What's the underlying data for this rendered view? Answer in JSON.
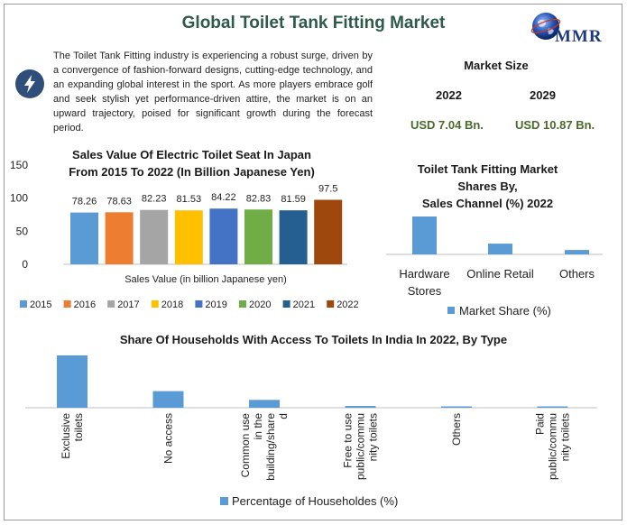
{
  "page": {
    "title": "Global Toilet Tank Fitting Market",
    "logo_text": "MMR",
    "intro": "The Toilet Tank Fitting industry is experiencing a robust surge, driven by a convergence of fashion-forward designs, cutting-edge technology, and an expanding global interest in the sport. As more players embrace golf and seek stylish yet performance-driven attire, the market is on an upward trajectory, poised for significant growth during the forecast period."
  },
  "market_size": {
    "title": "Market Size",
    "year_start": "2022",
    "year_end": "2029",
    "value_start": "USD 7.04 Bn.",
    "value_end": "USD 10.87 Bn."
  },
  "colors": {
    "title": "#2e5a4a",
    "blue": "#5b9bd5",
    "value_green": "#4a6a2a"
  },
  "chart_data": [
    {
      "type": "bar",
      "title_line1": "Sales Value Of Electric Toilet Seat In Japan",
      "title_line2": "From 2015 To 2022 (In Billion Japanese Yen)",
      "xlabel": "Sales Value (in billion Japanese yen)",
      "ylim": [
        0,
        150
      ],
      "yticks": [
        "0",
        "50",
        "100",
        "150"
      ],
      "ytick_values": [
        0,
        50,
        100,
        150
      ],
      "legend_position": "bottom",
      "series": [
        {
          "name": "2015",
          "value": 78.26,
          "label": "78.26",
          "color": "#5b9bd5"
        },
        {
          "name": "2016",
          "value": 78.63,
          "label": "78.63",
          "color": "#ed7d31"
        },
        {
          "name": "2017",
          "value": 82.23,
          "label": "82.23",
          "color": "#a5a5a5"
        },
        {
          "name": "2018",
          "value": 81.53,
          "label": "81.53",
          "color": "#ffc000"
        },
        {
          "name": "2019",
          "value": 84.22,
          "label": "84.22",
          "color": "#4472c4"
        },
        {
          "name": "2020",
          "value": 82.83,
          "label": "82.83",
          "color": "#70ad47"
        },
        {
          "name": "2021",
          "value": 81.59,
          "label": "81.59",
          "color": "#255e91"
        },
        {
          "name": "2022",
          "value": 97.5,
          "label": "97.5",
          "color": "#9e480e"
        }
      ]
    },
    {
      "type": "bar",
      "title_line1": "Toilet Tank Fitting Market",
      "title_line2": "Shares By,",
      "title_line3": "Sales Channel (%) 2022",
      "legend": "Market Share (%)",
      "legend_position": "bottom",
      "categories": [
        {
          "line1": "Hardware",
          "line2": "Stores"
        },
        {
          "line1": "Online Retail",
          "line2": ""
        },
        {
          "line1": "Others",
          "line2": ""
        }
      ],
      "values": [
        60,
        17,
        7
      ],
      "ylim": [
        0,
        70
      ]
    },
    {
      "type": "bar",
      "title": "Share Of Households With Access To Toilets In India In 2022, By Type",
      "legend": "Percentage of Householdes (%)",
      "legend_position": "bottom",
      "categories": [
        {
          "lines": [
            "Exclusive",
            "toilets"
          ]
        },
        {
          "lines": [
            "No access"
          ]
        },
        {
          "lines": [
            "Common use",
            "in the",
            "building/share",
            "d"
          ]
        },
        {
          "lines": [
            "Free to use",
            "public/commu",
            "nity toilets"
          ]
        },
        {
          "lines": [
            "Others"
          ]
        },
        {
          "lines": [
            "Paid",
            "public/commu",
            "nity toilets"
          ]
        }
      ],
      "values": [
        60,
        19,
        9,
        2,
        1,
        1
      ],
      "ylim": [
        0,
        62
      ]
    }
  ]
}
